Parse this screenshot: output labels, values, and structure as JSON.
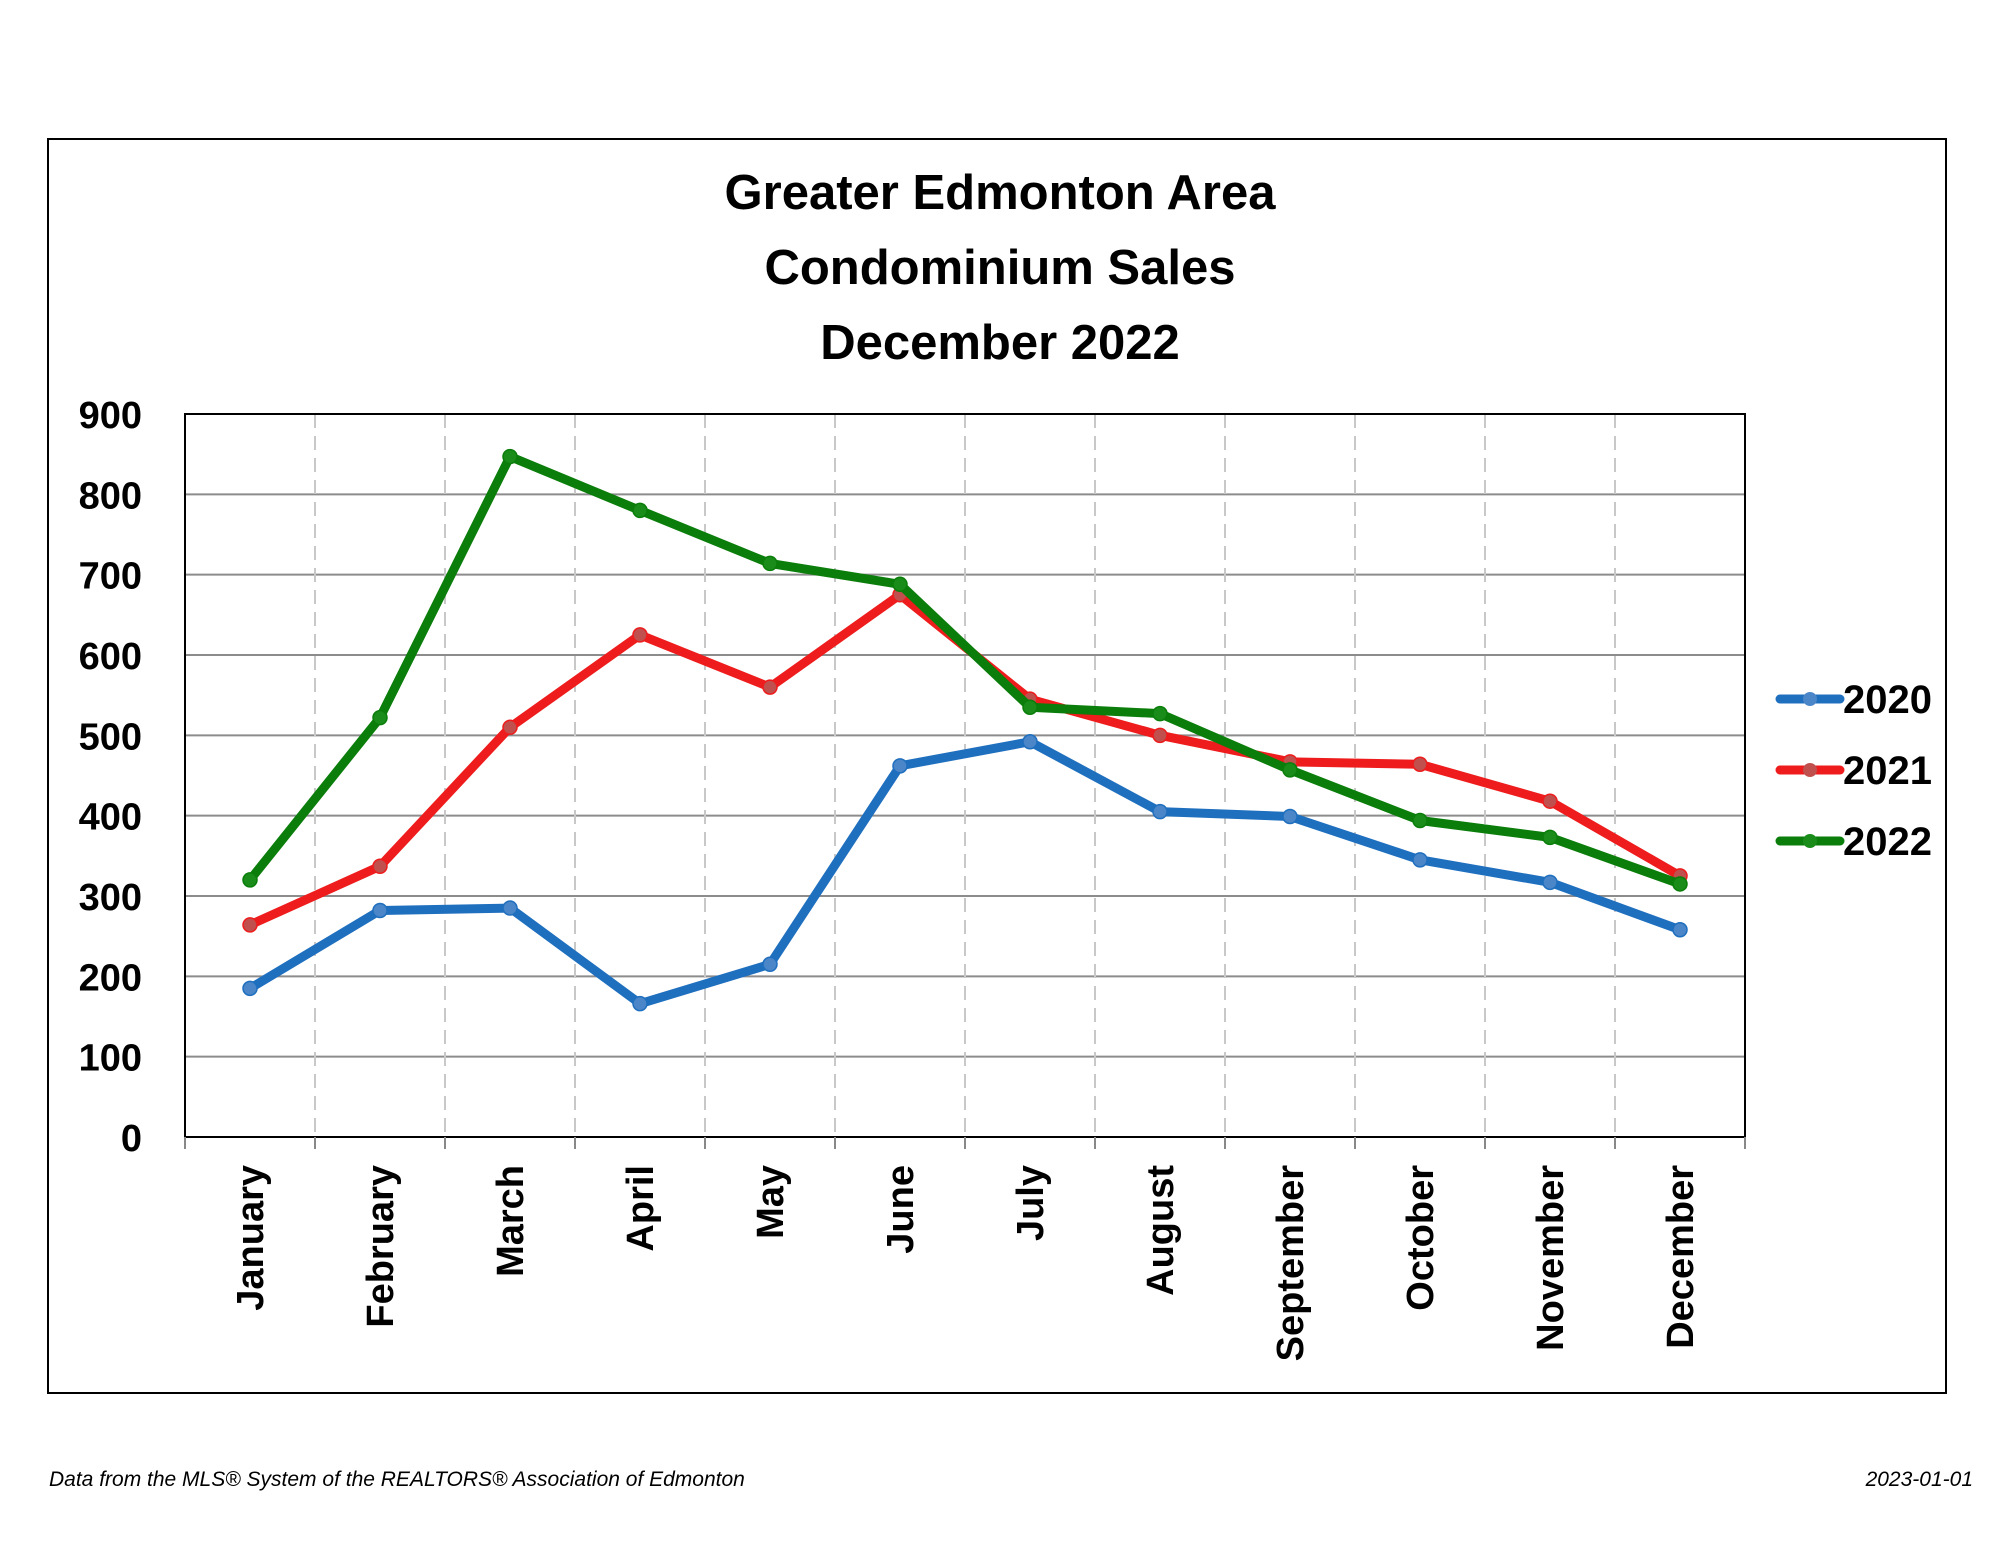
{
  "chart_data": {
    "type": "line",
    "title": [
      "Greater Edmonton Area",
      "Condominium Sales",
      "December 2022"
    ],
    "categories": [
      "January",
      "February",
      "March",
      "April",
      "May",
      "June",
      "July",
      "August",
      "September",
      "October",
      "November",
      "December"
    ],
    "series": [
      {
        "name": "2020",
        "color": "#1f6fbf",
        "marker_color": "#4a86c8",
        "values": [
          185,
          282,
          285,
          166,
          215,
          462,
          492,
          405,
          399,
          345,
          317,
          258
        ]
      },
      {
        "name": "2021",
        "color": "#ee1c1c",
        "marker_color": "#c0504d",
        "values": [
          264,
          337,
          510,
          625,
          560,
          675,
          545,
          500,
          467,
          464,
          418,
          325
        ]
      },
      {
        "name": "2022",
        "color": "#0a7d0a",
        "marker_color": "#1a8c1a",
        "values": [
          320,
          522,
          847,
          780,
          714,
          688,
          535,
          527,
          457,
          394,
          373,
          315
        ]
      }
    ],
    "ylim": [
      0,
      900
    ],
    "yticks": [
      0,
      100,
      200,
      300,
      400,
      500,
      600,
      700,
      800,
      900
    ],
    "grid": {
      "horizontal": "solid",
      "vertical": "dashed"
    },
    "legend": "right"
  },
  "footer": {
    "source": "Data from the MLS® System of the REALTORS® Association of Edmonton",
    "date": "2023-01-01"
  }
}
